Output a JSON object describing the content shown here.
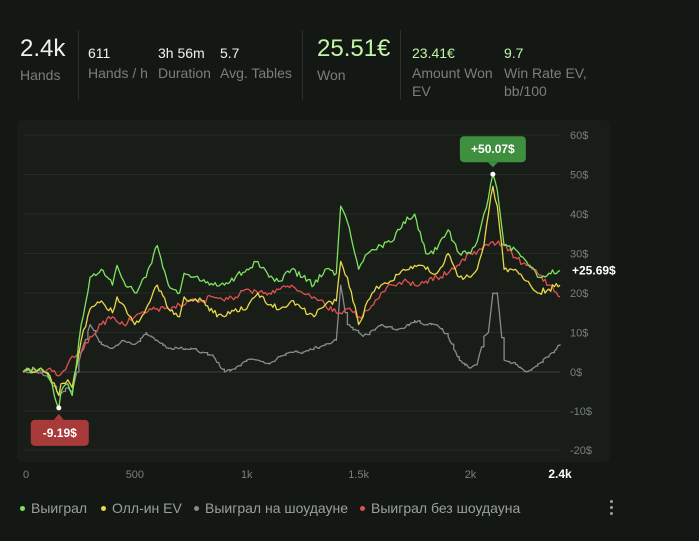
{
  "stats": [
    {
      "value": "2.4k",
      "label": "Hands"
    },
    {
      "value": "611",
      "label": "Hands / h"
    },
    {
      "value": "3h 56m",
      "label": "Duration"
    },
    {
      "value": "5.7",
      "label": "Avg. Tables"
    },
    {
      "value": "25.51€",
      "label": "Won"
    },
    {
      "value": "23.41€",
      "label": "Amount Won EV"
    },
    {
      "value": "9.7",
      "label": "Win Rate EV, bb/100"
    }
  ],
  "colors": {
    "won": "#7ee35f",
    "allin_ev": "#e8d84a",
    "showdown": "#8a8a8a",
    "non_showdown": "#e05050",
    "badge_positive": "#3e8f3e",
    "badge_negative": "#a83a3a",
    "accent_green": "#c3f5a5"
  },
  "chart_data": {
    "type": "line",
    "xlim": [
      0,
      2400
    ],
    "ylim": [
      -20,
      60
    ],
    "x_ticks": [
      "0",
      "500",
      "1k",
      "1.5k",
      "2k",
      "2.4k"
    ],
    "x_tick_values": [
      0,
      500,
      1000,
      1500,
      2000,
      2400
    ],
    "y_ticks": [
      "60$",
      "50$",
      "40$",
      "30$",
      "20$",
      "10$",
      "0$",
      "-10$",
      "-20$"
    ],
    "y_tick_values": [
      60,
      50,
      40,
      30,
      20,
      10,
      0,
      -10,
      -20
    ],
    "grid": true,
    "badges": {
      "max": {
        "label": "+50.07$",
        "x": 2100,
        "y": 50.07
      },
      "min": {
        "label": "-9.19$",
        "x": 160,
        "y": -9.19
      },
      "last": {
        "label": "+25.69$",
        "y": 25.69
      }
    },
    "series": [
      {
        "name": "Выиграл",
        "color_key": "won",
        "x": [
          0,
          80,
          120,
          160,
          170,
          200,
          220,
          260,
          300,
          350,
          400,
          420,
          450,
          500,
          550,
          600,
          650,
          700,
          720,
          760,
          800,
          850,
          900,
          950,
          1000,
          1050,
          1100,
          1150,
          1200,
          1250,
          1300,
          1350,
          1400,
          1420,
          1450,
          1500,
          1520,
          1540,
          1560,
          1600,
          1650,
          1700,
          1750,
          1800,
          1850,
          1900,
          1950,
          2000,
          2030,
          2060,
          2080,
          2100,
          2120,
          2150,
          2200,
          2250,
          2300,
          2350,
          2400
        ],
        "y": [
          0,
          1,
          -2,
          -9.19,
          -5,
          -3,
          -6,
          12,
          24,
          26,
          22,
          27,
          23,
          20,
          24,
          32,
          22,
          20,
          25,
          24,
          23,
          22,
          22,
          24,
          26,
          28,
          24,
          23,
          26,
          24,
          22,
          26,
          25,
          42,
          38,
          26,
          28,
          30,
          31,
          32,
          33,
          38,
          40,
          30,
          31,
          36,
          30,
          30,
          33,
          40,
          44,
          50.07,
          46,
          32,
          31,
          28,
          24,
          25,
          25.69
        ]
      },
      {
        "name": "Олл-ин EV",
        "color_key": "allin_ev",
        "x": [
          0,
          80,
          120,
          160,
          170,
          200,
          220,
          260,
          300,
          350,
          400,
          420,
          450,
          500,
          550,
          600,
          650,
          700,
          720,
          760,
          800,
          850,
          900,
          950,
          1000,
          1050,
          1100,
          1150,
          1200,
          1250,
          1300,
          1350,
          1400,
          1420,
          1450,
          1500,
          1520,
          1540,
          1560,
          1600,
          1650,
          1700,
          1750,
          1800,
          1850,
          1900,
          1950,
          2000,
          2030,
          2060,
          2080,
          2100,
          2120,
          2150,
          2200,
          2250,
          2300,
          2350,
          2400
        ],
        "y": [
          0,
          1,
          -1,
          -6,
          -3,
          -2,
          -4,
          8,
          16,
          18,
          15,
          19,
          17,
          12,
          16,
          22,
          16,
          14,
          19,
          18,
          18,
          15,
          14,
          16,
          16,
          20,
          17,
          16,
          18,
          16,
          14,
          17,
          18,
          28,
          24,
          12,
          14,
          18,
          20,
          22,
          23,
          26,
          27,
          26,
          25,
          30,
          24,
          24,
          26,
          32,
          40,
          47,
          42,
          26,
          26,
          23,
          20,
          21,
          22
        ]
      },
      {
        "name": "Выиграл на шоудауне",
        "color_key": "showdown",
        "x": [
          0,
          80,
          120,
          160,
          200,
          220,
          260,
          300,
          350,
          400,
          450,
          500,
          550,
          600,
          650,
          700,
          750,
          800,
          850,
          900,
          950,
          1000,
          1050,
          1100,
          1150,
          1200,
          1250,
          1300,
          1350,
          1400,
          1420,
          1450,
          1500,
          1520,
          1550,
          1600,
          1650,
          1700,
          1750,
          1800,
          1850,
          1900,
          1950,
          2000,
          2030,
          2060,
          2080,
          2100,
          2120,
          2150,
          2200,
          2250,
          2300,
          2350,
          2400
        ],
        "y": [
          0,
          0,
          -2,
          -6,
          -4,
          -5,
          5,
          12,
          7,
          6,
          8,
          7,
          10,
          8,
          6,
          6,
          6,
          5,
          4,
          0,
          1,
          3,
          3,
          2,
          4,
          5,
          5,
          6,
          7,
          8,
          22,
          12,
          10,
          9,
          10,
          12,
          11,
          11,
          13,
          12,
          12,
          9,
          3,
          1,
          2,
          9,
          10,
          20,
          20,
          3,
          2,
          0,
          2,
          4,
          7
        ]
      },
      {
        "name": "Выиграл без шоудауна",
        "color_key": "non_showdown",
        "x": [
          0,
          80,
          120,
          160,
          200,
          220,
          260,
          300,
          350,
          400,
          450,
          500,
          550,
          600,
          650,
          700,
          750,
          800,
          850,
          900,
          950,
          1000,
          1050,
          1100,
          1150,
          1200,
          1250,
          1300,
          1350,
          1400,
          1450,
          1500,
          1550,
          1600,
          1650,
          1700,
          1750,
          1800,
          1850,
          1900,
          1950,
          2000,
          2050,
          2080,
          2100,
          2150,
          2200,
          2250,
          2300,
          2350,
          2400
        ],
        "y": [
          0,
          0,
          1,
          -1,
          2,
          4,
          5,
          9,
          12,
          14,
          12,
          14,
          15,
          16,
          16,
          17,
          18,
          18,
          19,
          18,
          19,
          21,
          20,
          20,
          21,
          22,
          20,
          19,
          17,
          15,
          16,
          14,
          16,
          20,
          22,
          23,
          22,
          23,
          24,
          25,
          27,
          30,
          31,
          32,
          33,
          32,
          29,
          27,
          25,
          22,
          19
        ]
      }
    ]
  },
  "legend": [
    {
      "label": "Выиграл",
      "color_key": "won"
    },
    {
      "label": "Олл-ин EV",
      "color_key": "allin_ev"
    },
    {
      "label": "Выиграл на шоудауне",
      "color_key": "showdown"
    },
    {
      "label": "Выиграл без шоудауна",
      "color_key": "non_showdown"
    }
  ],
  "menu_icon": "kebab-menu-icon"
}
